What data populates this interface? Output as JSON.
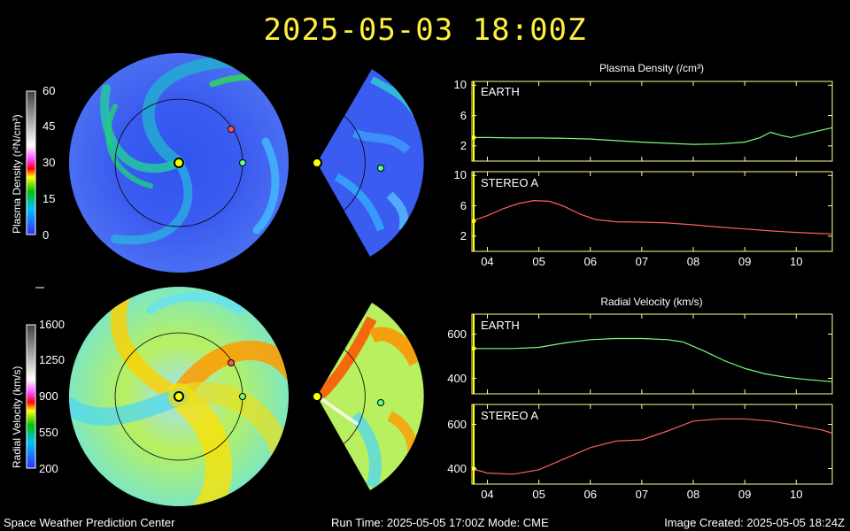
{
  "header": {
    "timestamp": "2025-05-03 18:00Z"
  },
  "footer": {
    "left": "Space Weather Prediction Center",
    "center": "Run Time: 2025-05-05 17:00Z  Mode: CME",
    "right": "Image Created: 2025-05-05 18:24Z"
  },
  "colorbars": {
    "density": {
      "label": "Plasma Density (r²N/cm³)",
      "ticks": [
        "60",
        "45",
        "30",
        "15",
        "0"
      ]
    },
    "velocity": {
      "label": "Radial Velocity (km/s)",
      "ticks": [
        "1600",
        "1250",
        "900",
        "550",
        "200"
      ]
    }
  },
  "colors": {
    "title": "#ffef40",
    "earth_series": "#7cff7c",
    "stereo_series": "#ff6060",
    "earth_marker": "#66ff88",
    "stereo_marker": "#ff5555",
    "sun": "#ffff00",
    "frame": "#ffff99",
    "now_line": "#ffff00"
  },
  "chart_data": [
    {
      "type": "line",
      "title": "Plasma Density (/cm³)",
      "panel": "EARTH",
      "x_ticks": [
        "04",
        "05",
        "06",
        "07",
        "08",
        "09",
        "10"
      ],
      "y_ticks": [
        "10",
        "6",
        "2"
      ],
      "ylim": [
        0,
        10.5
      ],
      "xlim": [
        3.7,
        10.7
      ],
      "x": [
        3.7,
        4.0,
        4.5,
        5.0,
        5.5,
        6.0,
        6.5,
        7.0,
        7.5,
        8.0,
        8.5,
        9.0,
        9.3,
        9.5,
        9.7,
        9.9,
        10.2,
        10.5,
        10.7
      ],
      "values": [
        3.1,
        3.1,
        3.05,
        3.05,
        3.0,
        2.9,
        2.7,
        2.5,
        2.35,
        2.2,
        2.25,
        2.5,
        3.1,
        3.8,
        3.4,
        3.1,
        3.6,
        4.1,
        4.4
      ]
    },
    {
      "type": "line",
      "panel": "STEREO A",
      "x_ticks": [
        "04",
        "05",
        "06",
        "07",
        "08",
        "09",
        "10"
      ],
      "y_ticks": [
        "10",
        "6",
        "2"
      ],
      "ylim": [
        0,
        10.5
      ],
      "xlim": [
        3.7,
        10.7
      ],
      "x": [
        3.7,
        4.0,
        4.3,
        4.6,
        4.9,
        5.2,
        5.5,
        5.8,
        6.1,
        6.5,
        7.0,
        7.5,
        8.0,
        8.5,
        9.0,
        9.5,
        10.0,
        10.5,
        10.7
      ],
      "values": [
        4.0,
        4.7,
        5.6,
        6.3,
        6.7,
        6.6,
        5.9,
        4.9,
        4.2,
        3.9,
        3.85,
        3.75,
        3.5,
        3.2,
        2.95,
        2.7,
        2.5,
        2.35,
        2.3
      ]
    },
    {
      "type": "line",
      "title": "Radial Velocity (km/s)",
      "panel": "EARTH",
      "x_ticks": [
        "04",
        "05",
        "06",
        "07",
        "08",
        "09",
        "10"
      ],
      "y_ticks": [
        "600",
        "400"
      ],
      "ylim": [
        330,
        690
      ],
      "xlim": [
        3.7,
        10.7
      ],
      "x": [
        3.7,
        4.0,
        4.5,
        5.0,
        5.5,
        6.0,
        6.5,
        7.0,
        7.5,
        7.8,
        8.2,
        8.6,
        9.0,
        9.4,
        9.8,
        10.2,
        10.7
      ],
      "values": [
        535,
        535,
        535,
        540,
        560,
        575,
        580,
        580,
        575,
        565,
        525,
        480,
        445,
        420,
        405,
        395,
        385
      ]
    },
    {
      "type": "line",
      "panel": "STEREO A",
      "x_ticks": [
        "04",
        "05",
        "06",
        "07",
        "08",
        "09",
        "10"
      ],
      "y_ticks": [
        "600",
        "400"
      ],
      "ylim": [
        330,
        690
      ],
      "xlim": [
        3.7,
        10.7
      ],
      "x": [
        3.7,
        4.0,
        4.5,
        5.0,
        5.5,
        6.0,
        6.5,
        7.0,
        7.5,
        8.0,
        8.5,
        9.0,
        9.5,
        10.0,
        10.5,
        10.7
      ],
      "values": [
        400,
        380,
        375,
        395,
        445,
        495,
        525,
        530,
        570,
        615,
        625,
        625,
        615,
        595,
        575,
        560
      ]
    }
  ]
}
